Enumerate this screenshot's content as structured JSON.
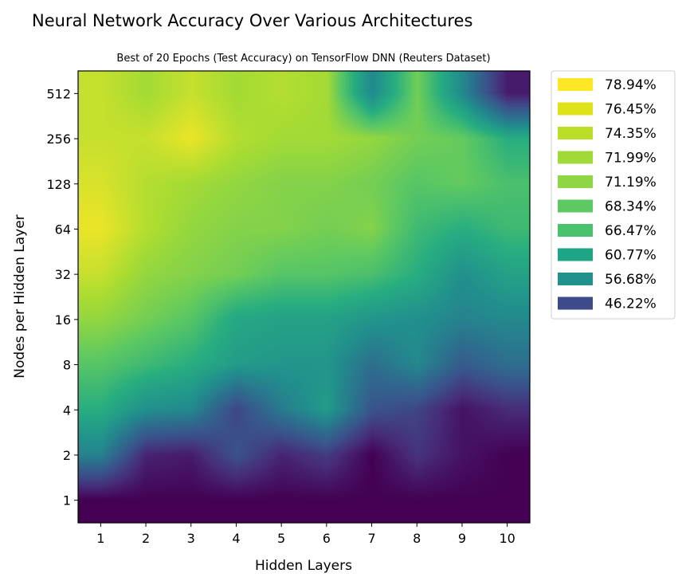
{
  "chart_data": {
    "type": "heatmap",
    "title": "Neural Network Accuracy Over Various Architectures",
    "subtitle": "Best of 20 Epochs (Test Accuracy) on TensorFlow DNN (Reuters Dataset)",
    "xlabel": "Hidden Layers",
    "ylabel": "Nodes per Hidden Layer",
    "x_categories": [
      "1",
      "2",
      "3",
      "4",
      "5",
      "6",
      "7",
      "8",
      "9",
      "10"
    ],
    "y_categories": [
      "1",
      "2",
      "4",
      "8",
      "16",
      "32",
      "64",
      "128",
      "256",
      "512"
    ],
    "values": [
      [
        42,
        42,
        42,
        42,
        42,
        42,
        42,
        42,
        42,
        42
      ],
      [
        59,
        46,
        45,
        52,
        46,
        49,
        42,
        48,
        44,
        42
      ],
      [
        66,
        61,
        60,
        50,
        58,
        63,
        52,
        50,
        44,
        47
      ],
      [
        70,
        68,
        66,
        63,
        62,
        62,
        56,
        60,
        53,
        56
      ],
      [
        74,
        72,
        70,
        65,
        64,
        64,
        62,
        61,
        59,
        60
      ],
      [
        77,
        74,
        73,
        72,
        70,
        70,
        69,
        66,
        61,
        64
      ],
      [
        79,
        76,
        74,
        73,
        73,
        72,
        73,
        68,
        66,
        68
      ],
      [
        78,
        76,
        75,
        74,
        73,
        73,
        72,
        70,
        71,
        69
      ],
      [
        77,
        77,
        79,
        76,
        75,
        75,
        74,
        72,
        71,
        66
      ],
      [
        77,
        75,
        77,
        75,
        76,
        75,
        60,
        72,
        60,
        45
      ]
    ],
    "legend": [
      {
        "label": "78.94%",
        "value": 78.94,
        "color": "#fde725"
      },
      {
        "label": "76.45%",
        "value": 76.45,
        "color": "#dde318"
      },
      {
        "label": "74.35%",
        "value": 74.35,
        "color": "#bade28"
      },
      {
        "label": "71.99%",
        "value": 71.99,
        "color": "#a0da39"
      },
      {
        "label": "71.19%",
        "value": 71.19,
        "color": "#8ed645"
      },
      {
        "label": "68.34%",
        "value": 68.34,
        "color": "#5ec962"
      },
      {
        "label": "66.47%",
        "value": 66.47,
        "color": "#4ac16d"
      },
      {
        "label": "60.77%",
        "value": 60.77,
        "color": "#20a486"
      },
      {
        "label": "56.68%",
        "value": 56.68,
        "color": "#21918c"
      },
      {
        "label": "46.22%",
        "value": 46.22,
        "color": "#3e4a89"
      }
    ],
    "legend_position": "outside-top-right",
    "colormap": "viridis",
    "color_range": [
      42,
      80
    ],
    "interpolation": "smooth",
    "grid": false
  }
}
